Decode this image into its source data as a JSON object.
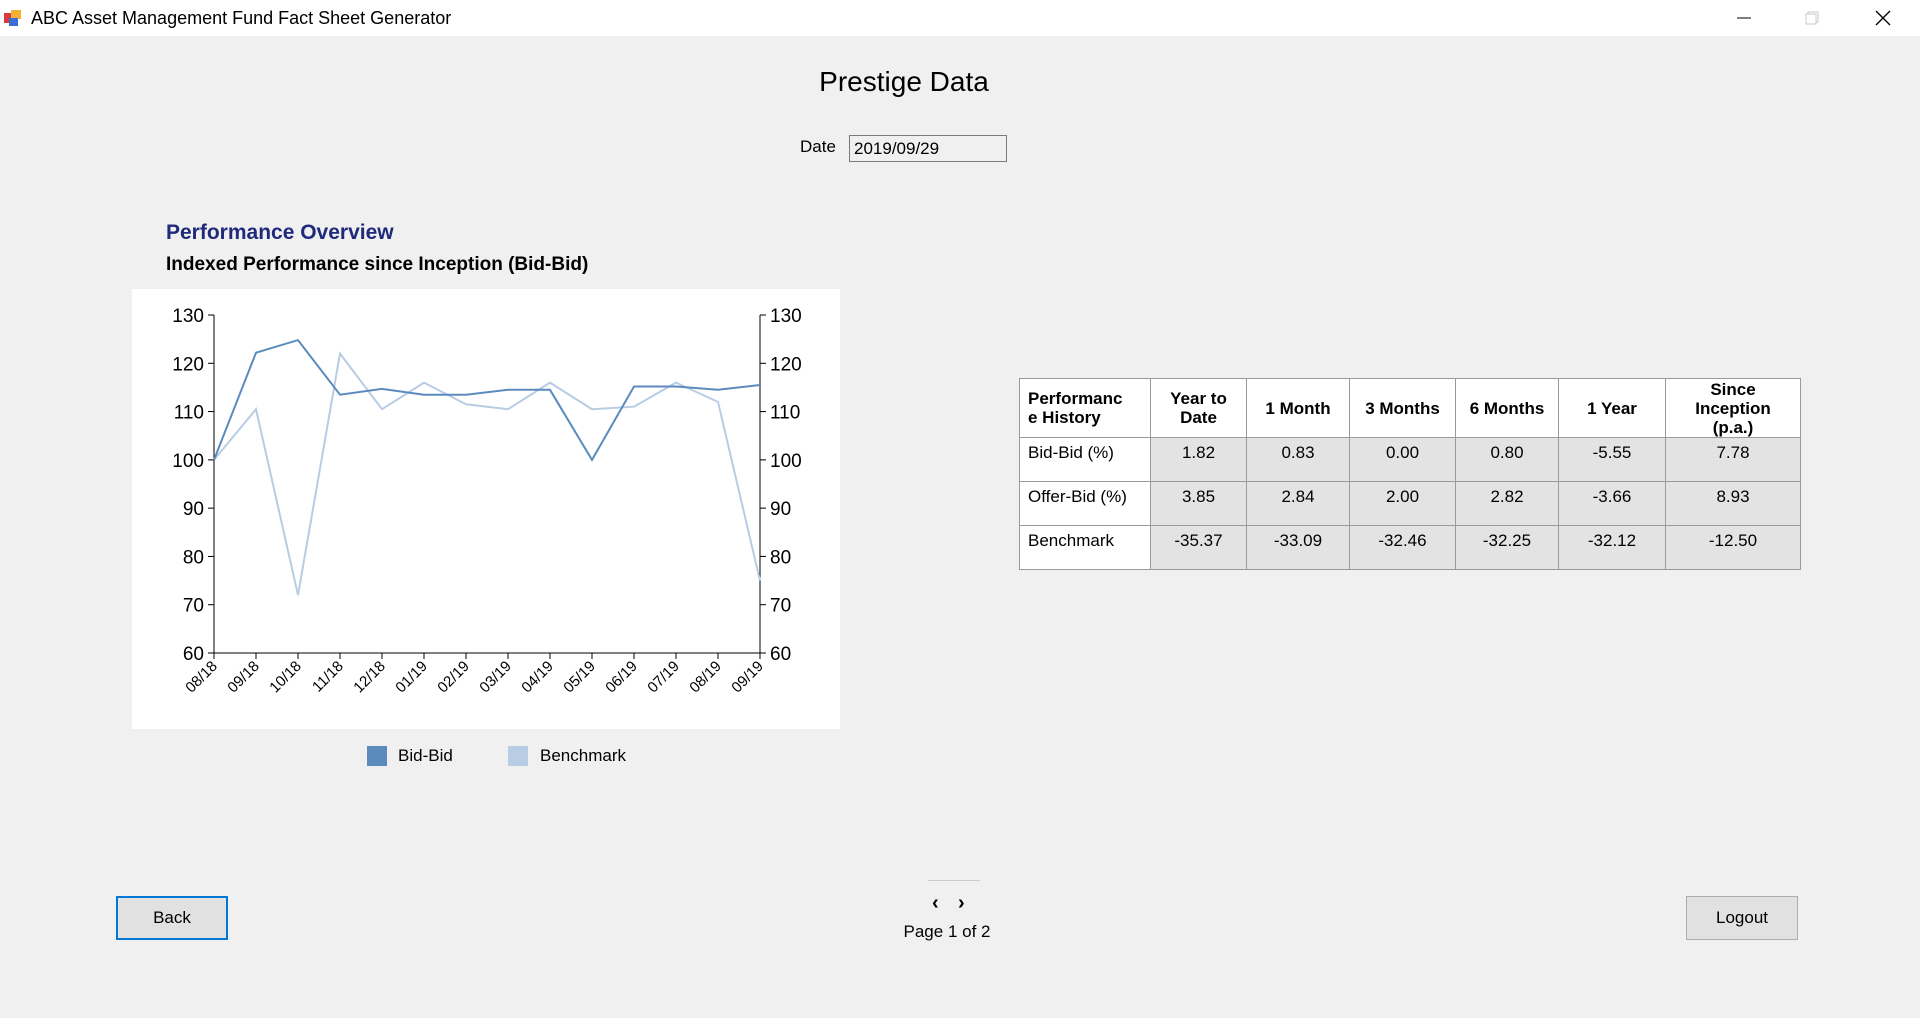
{
  "window": {
    "title": "ABC Asset Management Fund Fact Sheet Generator",
    "icons": {
      "app": "app-logo-icon",
      "minimize": "minimize-icon",
      "maximize": "maximize-icon",
      "close": "close-icon"
    }
  },
  "page": {
    "title": "Prestige Data",
    "date_label": "Date",
    "date_value": "2019/09/29"
  },
  "performance": {
    "heading": "Performance Overview",
    "subheading": "Indexed Performance since Inception (Bid-Bid)"
  },
  "chart_data": {
    "type": "line",
    "title": "",
    "xlabel": "",
    "ylabel": "",
    "categories": [
      "08/18",
      "09/18",
      "10/18",
      "11/18",
      "12/18",
      "01/19",
      "02/19",
      "03/19",
      "04/19",
      "05/19",
      "06/19",
      "07/19",
      "08/19",
      "09/19"
    ],
    "ylim": [
      60,
      130
    ],
    "yticks": [
      60,
      70,
      80,
      90,
      100,
      110,
      120,
      130
    ],
    "secondary_y_axis": true,
    "grid": false,
    "legend_position": "bottom",
    "series": [
      {
        "name": "Bid-Bid",
        "color": "#5b8bbd",
        "values": [
          100,
          122.2,
          124.8,
          113.5,
          114.7,
          113.5,
          113.5,
          114.5,
          114.5,
          100,
          115.2,
          115.2,
          114.5,
          115.5
        ]
      },
      {
        "name": "Benchmark",
        "color": "#b8cce4",
        "values": [
          100,
          110.5,
          72,
          122,
          110.5,
          116,
          111.5,
          110.5,
          116,
          110.5,
          111,
          116,
          112,
          75
        ]
      }
    ]
  },
  "table": {
    "headers": [
      "Performance History",
      "Year to Date",
      "1 Month",
      "3 Months",
      "6 Months",
      "1 Year",
      "Since Inception (p.a.)"
    ],
    "header_lines": [
      [
        "Performanc",
        "e History"
      ],
      [
        "Year to",
        "Date"
      ],
      [
        "1 Month"
      ],
      [
        "3 Months"
      ],
      [
        "6 Months"
      ],
      [
        "1 Year"
      ],
      [
        "Since",
        "Inception",
        "(p.a.)"
      ]
    ],
    "rows": [
      {
        "label": "Bid-Bid (%)",
        "values": [
          "1.82",
          "0.83",
          "0.00",
          "0.80",
          "-5.55",
          "7.78"
        ]
      },
      {
        "label": "Offer-Bid (%)",
        "values": [
          "3.85",
          "2.84",
          "2.00",
          "2.82",
          "-3.66",
          "8.93"
        ]
      },
      {
        "label": "Benchmark",
        "values": [
          "-35.37",
          "-33.09",
          "-32.46",
          "-32.25",
          "-32.12",
          "-12.50"
        ]
      }
    ]
  },
  "buttons": {
    "back": "Back",
    "logout": "Logout"
  },
  "pager": {
    "prev": "‹",
    "next": "›",
    "text": "Page 1 of 2"
  }
}
